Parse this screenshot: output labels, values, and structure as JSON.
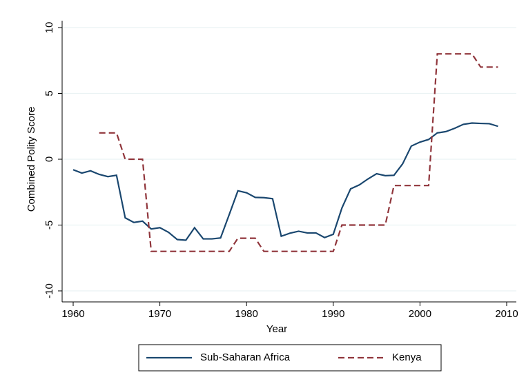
{
  "chart_data": {
    "type": "line",
    "x": [
      1960,
      1961,
      1962,
      1963,
      1964,
      1965,
      1966,
      1967,
      1968,
      1969,
      1970,
      1971,
      1972,
      1973,
      1974,
      1975,
      1976,
      1977,
      1978,
      1979,
      1980,
      1981,
      1982,
      1983,
      1984,
      1985,
      1986,
      1987,
      1988,
      1989,
      1990,
      1991,
      1992,
      1993,
      1994,
      1995,
      1996,
      1997,
      1998,
      1999,
      2000,
      2001,
      2002,
      2003,
      2004,
      2005,
      2006,
      2007,
      2008,
      2009
    ],
    "series": [
      {
        "name": "Sub-Saharan Africa",
        "color": "#1a476f",
        "dash": false,
        "values": [
          -0.8,
          -1.05,
          -0.88,
          -1.15,
          -1.32,
          -1.22,
          -4.45,
          -4.8,
          -4.7,
          -5.3,
          -5.2,
          -5.55,
          -6.1,
          -6.15,
          -5.2,
          -6.05,
          -6.05,
          -5.98,
          -4.2,
          -2.4,
          -2.55,
          -2.9,
          -2.92,
          -3.0,
          -5.85,
          -5.62,
          -5.47,
          -5.6,
          -5.6,
          -5.95,
          -5.7,
          -3.7,
          -2.25,
          -1.95,
          -1.5,
          -1.1,
          -1.25,
          -1.22,
          -0.35,
          1.0,
          1.3,
          1.5,
          2.0,
          2.1,
          2.35,
          2.65,
          2.75,
          2.72,
          2.7,
          2.5
        ]
      },
      {
        "name": "Kenya",
        "color": "#90353b",
        "dash": true,
        "values": [
          null,
          null,
          null,
          2,
          2,
          2,
          0,
          0,
          0,
          -7,
          -7,
          -7,
          -7,
          -7,
          -7,
          -7,
          -7,
          -7,
          -7,
          -6,
          -6,
          -6,
          -7,
          -7,
          -7,
          -7,
          -7,
          -7,
          -7,
          -7,
          -7,
          -5,
          -5,
          -5,
          -5,
          -5,
          -5,
          -2,
          -2,
          -2,
          -2,
          -2,
          8,
          8,
          8,
          8,
          8,
          7,
          7,
          7
        ]
      }
    ],
    "x_label": "Year",
    "y_label": "Combined Polity Score",
    "xlim": [
      1960,
      2010
    ],
    "xticks": [
      1960,
      1970,
      1980,
      1990,
      2000,
      2010
    ],
    "ylim": [
      -10,
      10
    ],
    "yticks": [
      -10,
      -5,
      0,
      5,
      10
    ],
    "grid": true,
    "legend": "bottom"
  }
}
